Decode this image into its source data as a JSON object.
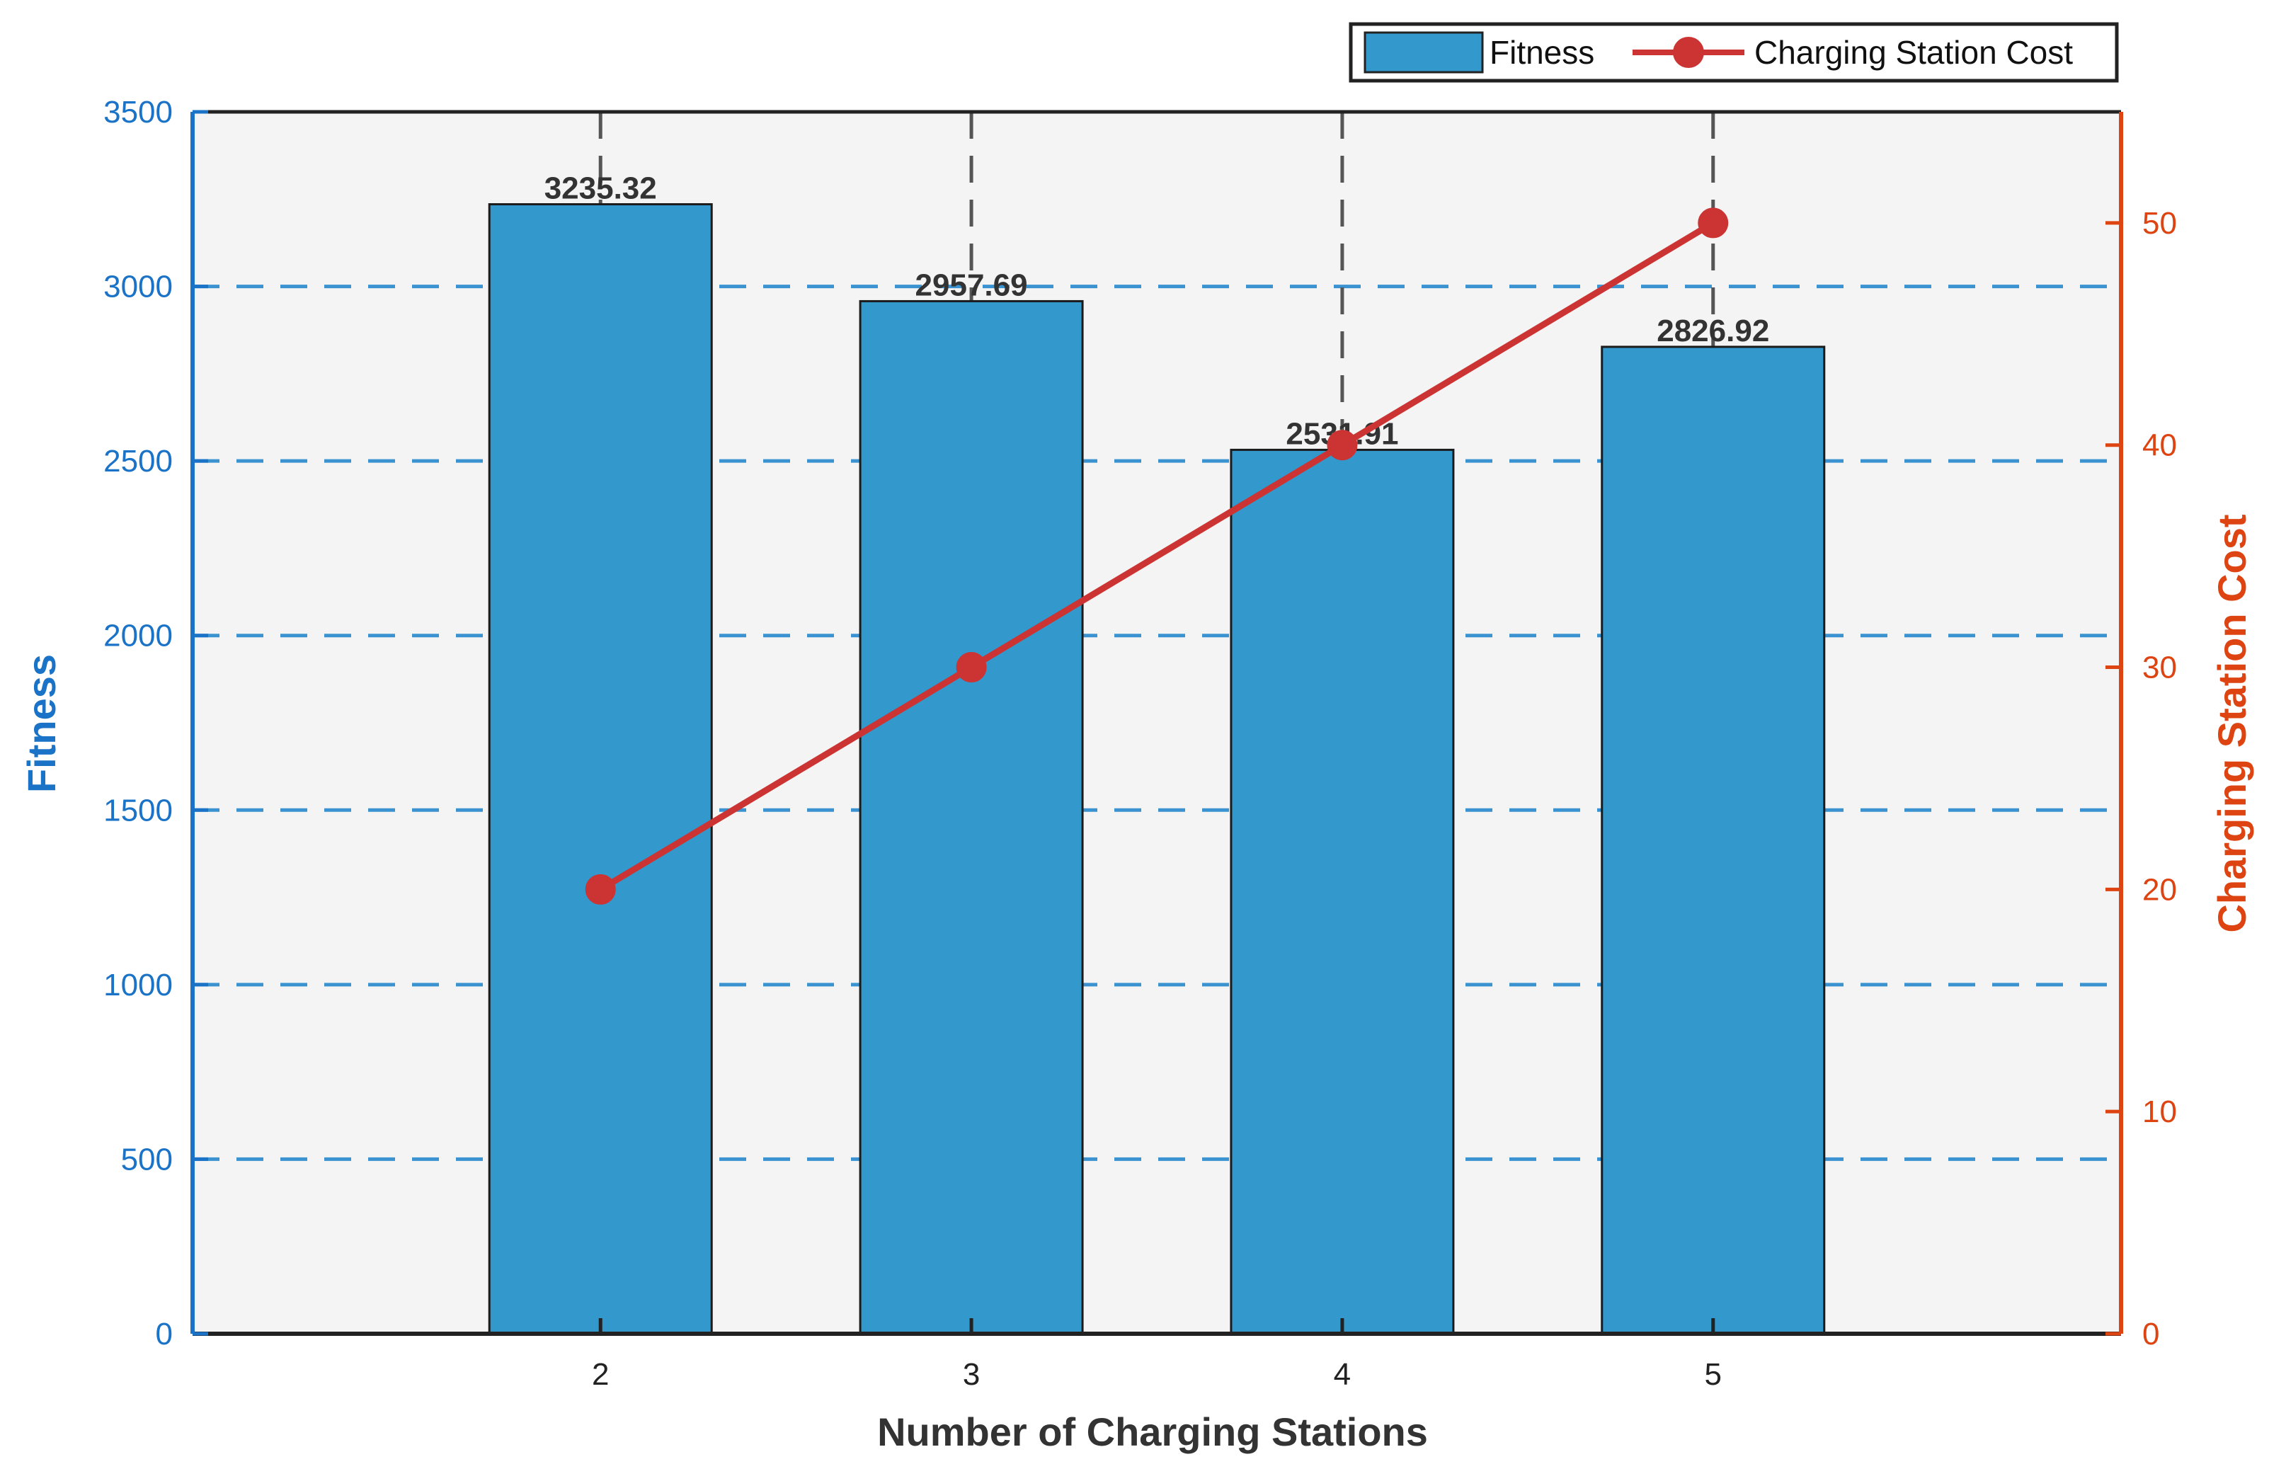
{
  "chart_data": {
    "type": "bar",
    "categories": [
      "2",
      "3",
      "4",
      "5"
    ],
    "series": [
      {
        "name": "Fitness",
        "type": "bar",
        "axis": "left",
        "values": [
          3235.32,
          2957.69,
          2531.91,
          2826.92
        ],
        "labels": [
          "3235.32",
          "2957.69",
          "2531.91",
          "2826.92"
        ]
      },
      {
        "name": "Charging Station Cost",
        "type": "line",
        "axis": "right",
        "values": [
          20,
          30,
          40,
          50
        ]
      }
    ],
    "xlabel": "Number of Charging Stations",
    "ylabel": "Fitness",
    "y2label": "Charging Station Cost",
    "ylim": [
      0,
      3500
    ],
    "y2lim": [
      0,
      55
    ],
    "yticks": [
      "0",
      "500",
      "1000",
      "1500",
      "2000",
      "2500",
      "3000",
      "3500"
    ],
    "y2ticks": [
      "0",
      "10",
      "20",
      "30",
      "40",
      "50"
    ],
    "grid": "dashed",
    "legend_position": "top-right",
    "colors": {
      "bar": "#3398cc",
      "line": "#cc3333",
      "left_axis": "#1a73c6",
      "right_axis": "#dd4411",
      "plot_bg": "#f4f4f4"
    }
  }
}
